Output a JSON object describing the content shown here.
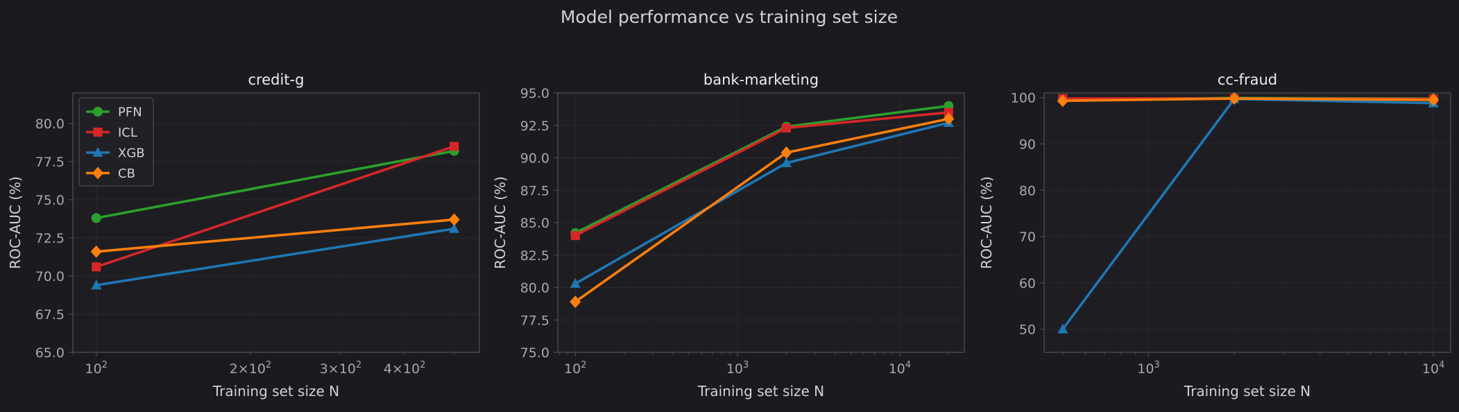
{
  "title": "Model performance vs training set size",
  "colors": {
    "background": "#1b1b1f",
    "axes_bg": "#1e1e22",
    "spine": "#4a4a4f",
    "grid": "#2a2a2f",
    "tick_text": "#a8a8a8",
    "label_text": "#d2d2d2",
    "title_text": "#ececec"
  },
  "legend": {
    "placement": "upper-left of first panel",
    "entries": [
      {
        "name": "PFN",
        "color": "#2ca02c",
        "marker": "circle"
      },
      {
        "name": "ICL",
        "color": "#d62728",
        "marker": "square"
      },
      {
        "name": "XGB",
        "color": "#1f77b4",
        "marker": "triangle"
      },
      {
        "name": "CB",
        "color": "#ff7f0e",
        "marker": "diamond"
      }
    ]
  },
  "chart_data": [
    {
      "type": "line",
      "title": "credit-g",
      "xlabel": "Training set size N",
      "ylabel": "ROC-AUC (%)",
      "xscale": "log",
      "xlim": [
        90,
        560
      ],
      "ylim": [
        65,
        82
      ],
      "xticks": [
        {
          "value": 100,
          "base": "10",
          "exp": "2"
        },
        {
          "value": 200,
          "base": "2×10",
          "exp": "2"
        },
        {
          "value": 300,
          "base": "3×10",
          "exp": "2"
        },
        {
          "value": 400,
          "base": "4×10",
          "exp": "2"
        }
      ],
      "yticks": [
        "65.0",
        "67.5",
        "70.0",
        "72.5",
        "75.0",
        "77.5",
        "80.0"
      ],
      "grid": true,
      "series": [
        {
          "name": "PFN",
          "x": [
            100,
            500
          ],
          "y": [
            73.8,
            78.2
          ]
        },
        {
          "name": "ICL",
          "x": [
            100,
            500
          ],
          "y": [
            70.6,
            78.5
          ]
        },
        {
          "name": "XGB",
          "x": [
            100,
            500
          ],
          "y": [
            69.4,
            73.1
          ]
        },
        {
          "name": "CB",
          "x": [
            100,
            500
          ],
          "y": [
            71.6,
            73.7
          ]
        }
      ]
    },
    {
      "type": "line",
      "title": "bank-marketing",
      "xlabel": "Training set size N",
      "ylabel": "ROC-AUC (%)",
      "xscale": "log",
      "xlim": [
        78,
        25000
      ],
      "ylim": [
        75,
        95
      ],
      "xticks": [
        {
          "value": 100,
          "base": "10",
          "exp": "2"
        },
        {
          "value": 1000,
          "base": "10",
          "exp": "3"
        },
        {
          "value": 10000,
          "base": "10",
          "exp": "4"
        }
      ],
      "yticks": [
        "75.0",
        "77.5",
        "80.0",
        "82.5",
        "85.0",
        "87.5",
        "90.0",
        "92.5",
        "95.0"
      ],
      "grid": true,
      "series": [
        {
          "name": "PFN",
          "x": [
            100,
            2000,
            20000
          ],
          "y": [
            84.2,
            92.4,
            94.0
          ]
        },
        {
          "name": "ICL",
          "x": [
            100,
            2000,
            20000
          ],
          "y": [
            84.0,
            92.3,
            93.5
          ]
        },
        {
          "name": "XGB",
          "x": [
            100,
            2000,
            20000
          ],
          "y": [
            80.3,
            89.6,
            92.7
          ]
        },
        {
          "name": "CB",
          "x": [
            100,
            2000,
            20000
          ],
          "y": [
            78.9,
            90.4,
            93.0
          ]
        }
      ]
    },
    {
      "type": "line",
      "title": "cc-fraud",
      "xlabel": "Training set size N",
      "ylabel": "ROC-AUC (%)",
      "xscale": "log",
      "xlim": [
        430,
        11500
      ],
      "ylim": [
        45,
        101
      ],
      "xticks": [
        {
          "value": 1000,
          "base": "10",
          "exp": "3"
        },
        {
          "value": 10000,
          "base": "10",
          "exp": "4"
        }
      ],
      "yticks": [
        "50",
        "60",
        "70",
        "80",
        "90",
        "100"
      ],
      "grid": true,
      "series": [
        {
          "name": "PFN",
          "x": [
            500,
            2000,
            10000
          ],
          "y": [
            99.6,
            99.9,
            99.8
          ]
        },
        {
          "name": "ICL",
          "x": [
            500,
            2000,
            10000
          ],
          "y": [
            99.8,
            99.8,
            99.7
          ]
        },
        {
          "name": "XGB",
          "x": [
            500,
            2000,
            10000
          ],
          "y": [
            50.0,
            99.7,
            98.8
          ]
        },
        {
          "name": "CB",
          "x": [
            500,
            2000,
            10000
          ],
          "y": [
            99.3,
            99.8,
            99.5
          ]
        }
      ]
    }
  ]
}
